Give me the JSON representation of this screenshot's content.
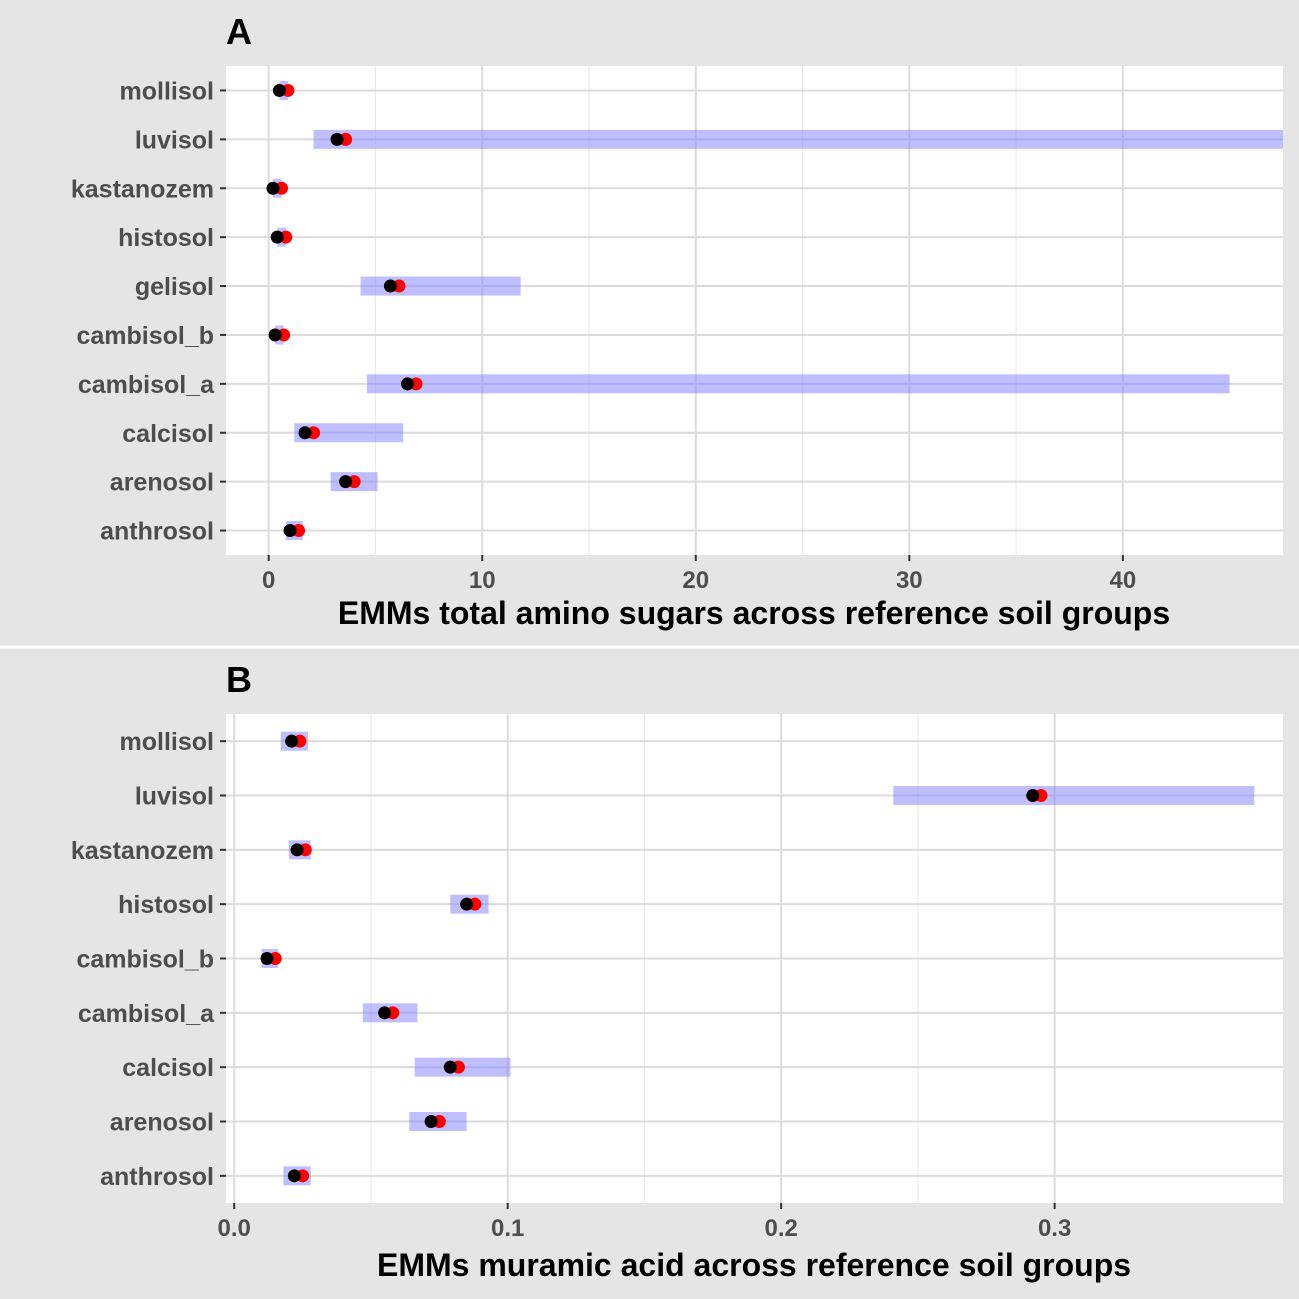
{
  "chart_data": [
    {
      "type": "errorbar-dot",
      "panel_label": "A",
      "xlabel": "EMMs total amino sugars across reference soil groups",
      "ylabel": "",
      "xlim": [
        -2,
        47.5
      ],
      "xticks": [
        0,
        10,
        20,
        30,
        40
      ],
      "xtick_labels": [
        "0",
        "10",
        "20",
        "30",
        "40"
      ],
      "grid": true,
      "categories": [
        "mollisol",
        "luvisol",
        "kastanozem",
        "histosol",
        "gelisol",
        "cambisol_b",
        "cambisol_a",
        "calcisol",
        "arenosol",
        "anthrosol"
      ],
      "emm": [
        0.5,
        3.2,
        0.2,
        0.4,
        5.7,
        0.3,
        6.5,
        1.7,
        3.6,
        1.0
      ],
      "lower": [
        0.5,
        2.1,
        0.2,
        0.4,
        4.3,
        0.3,
        4.6,
        1.2,
        2.9,
        0.8
      ],
      "upper": [
        0.9,
        47.5,
        0.6,
        0.8,
        11.8,
        0.7,
        45.0,
        6.3,
        5.1,
        1.6
      ],
      "observed_mean": [
        0.9,
        3.6,
        0.6,
        0.8,
        6.1,
        0.7,
        6.9,
        2.1,
        4.0,
        1.4
      ]
    },
    {
      "type": "errorbar-dot",
      "panel_label": "B",
      "xlabel": "EMMs muramic acid across reference soil groups",
      "ylabel": "",
      "xlim": [
        -0.003,
        0.3835
      ],
      "xticks": [
        0.0,
        0.1,
        0.2,
        0.3
      ],
      "xtick_labels": [
        "0.0",
        "0.1",
        "0.2",
        "0.3"
      ],
      "grid": true,
      "categories": [
        "mollisol",
        "luvisol",
        "kastanozem",
        "histosol",
        "cambisol_b",
        "cambisol_a",
        "calcisol",
        "arenosol",
        "anthrosol"
      ],
      "emm": [
        0.021,
        0.292,
        0.023,
        0.085,
        0.012,
        0.055,
        0.079,
        0.072,
        0.022
      ],
      "lower": [
        0.017,
        0.241,
        0.02,
        0.079,
        0.01,
        0.047,
        0.066,
        0.064,
        0.018
      ],
      "upper": [
        0.027,
        0.373,
        0.028,
        0.093,
        0.016,
        0.067,
        0.101,
        0.085,
        0.028
      ],
      "observed_mean": [
        0.024,
        0.295,
        0.026,
        0.088,
        0.015,
        0.058,
        0.082,
        0.075,
        0.025
      ]
    }
  ],
  "colors": {
    "panel_bg": "#ffffff",
    "figure_bg": "#e5e5e5",
    "grid": "#dcdcdc",
    "ci_band": "#7f7fff",
    "emm_point": "#000000",
    "observed_point": "#ff0000"
  }
}
